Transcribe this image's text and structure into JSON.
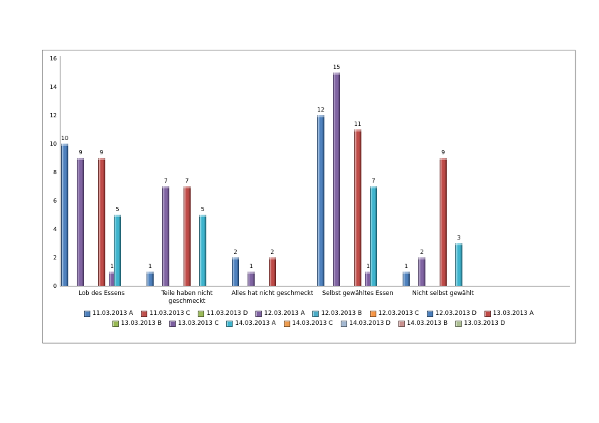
{
  "page": {
    "background": "#ffffff"
  },
  "chart_data": {
    "type": "bar",
    "title": "",
    "xlabel": "",
    "ylabel": "",
    "grid": "off",
    "data_labels": "on",
    "legend_position": "bottom",
    "axis_color": "#8c8c8c",
    "categories": [
      "Lob des Essens",
      "Teile haben nicht geschmeckt",
      "Alles hat nicht geschmeckt",
      "Selbst gewähltes Essen",
      "Nicht selbst gewählt"
    ],
    "y_axis": {
      "min": 0,
      "max": 16,
      "step": 2,
      "ticks": [
        0,
        2,
        4,
        6,
        8,
        10,
        12,
        14,
        16
      ]
    },
    "series": [
      {
        "name": "11.03.2013 A",
        "color": "#4F81BD",
        "color_dark": "#1F3E63",
        "color_light": "#A9C7E8",
        "values": [
          10,
          1,
          2,
          12,
          1
        ]
      },
      {
        "name": "11.03.2013 C",
        "color": "#C0504D",
        "color_dark": "#6A2422",
        "color_light": "#E0A6A4",
        "values": [
          0,
          0,
          0,
          0,
          0
        ]
      },
      {
        "name": "11.03.2013 D",
        "color": "#9BBB59",
        "color_dark": "#4F6228",
        "color_light": "#D6E4BD",
        "values": [
          0,
          0,
          0,
          0,
          0
        ]
      },
      {
        "name": "12.03.2013 A",
        "color": "#8064A2",
        "color_dark": "#46365C",
        "color_light": "#B5A5CB",
        "values": [
          9,
          7,
          1,
          15,
          2
        ]
      },
      {
        "name": "12.03.2013 B",
        "color": "#4BACC6",
        "color_dark": "#1E6C80",
        "color_light": "#A0D8E8",
        "values": [
          0,
          0,
          0,
          0,
          0
        ]
      },
      {
        "name": "12.03.2013 C",
        "color": "#F79646",
        "color_dark": "#98511E",
        "color_light": "#FBD5B5",
        "values": [
          0,
          0,
          0,
          0,
          0
        ]
      },
      {
        "name": "12.03.2013 D",
        "color": "#4A7EBB",
        "color_dark": "#254061",
        "color_light": "#A7C2E2",
        "values": [
          0,
          0,
          0,
          0,
          0
        ]
      },
      {
        "name": "13.03.2013 A",
        "color": "#BE4B48",
        "color_dark": "#632523",
        "color_light": "#E2A9A7",
        "values": [
          9,
          7,
          2,
          11,
          9
        ]
      },
      {
        "name": "13.03.2013 B",
        "color": "#98B954",
        "color_dark": "#4F6228",
        "color_light": "#D0DFAC",
        "values": [
          0,
          0,
          0,
          0,
          0
        ]
      },
      {
        "name": "13.03.2013 C",
        "color": "#7D60A0",
        "color_dark": "#544270",
        "color_light": "#C3B2DB",
        "values": [
          1,
          0,
          0,
          1,
          0
        ]
      },
      {
        "name": "14.03.2013 A",
        "color": "#3FB4CD",
        "color_dark": "#215967",
        "color_light": "#9ADCEA",
        "values": [
          5,
          5,
          0,
          7,
          3
        ]
      },
      {
        "name": "14.03.2013 C",
        "color": "#ED9B4E",
        "color_dark": "#B66D26",
        "color_light": "#FAD3AC",
        "values": [
          0,
          0,
          0,
          0,
          0
        ]
      },
      {
        "name": "14.03.2013 D",
        "color": "#A3B8D1",
        "color_dark": "#6E86A5",
        "color_light": "#D3DEEB",
        "values": [
          0,
          0,
          0,
          0,
          0
        ]
      },
      {
        "name": "14.03.2013 B",
        "color": "#C99290",
        "color_dark": "#96605E",
        "color_light": "#E8CAC9",
        "values": [
          0,
          0,
          0,
          0,
          0
        ]
      },
      {
        "name": "13.03.2013 D",
        "color": "#ADBF93",
        "color_dark": "#7E9361",
        "color_light": "#D9E2C9",
        "values": [
          0,
          0,
          0,
          0,
          0
        ]
      }
    ],
    "legend_rows": [
      8,
      7
    ]
  }
}
